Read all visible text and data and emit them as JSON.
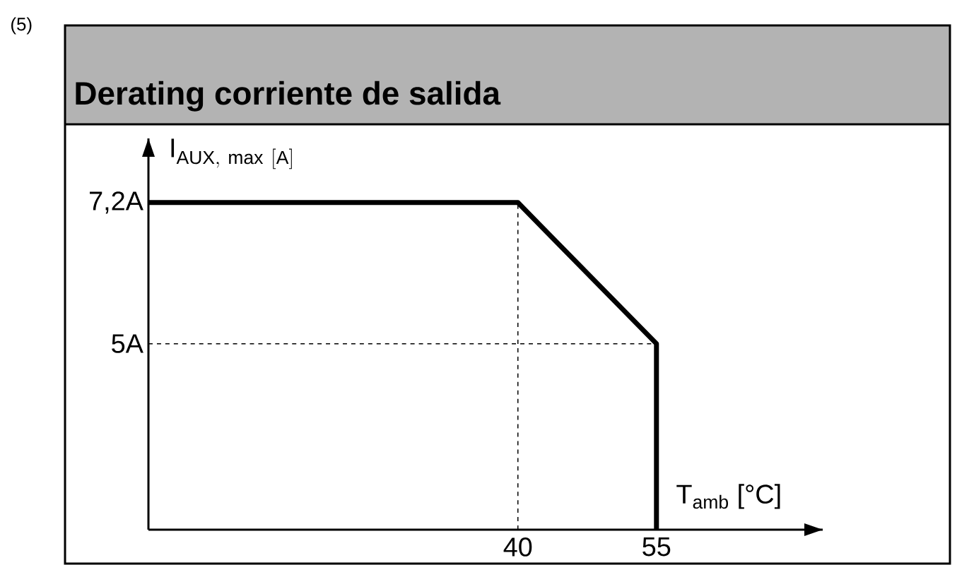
{
  "chart_data": {
    "type": "line",
    "title": "Derating corriente de salida",
    "annotations": [
      "(5)"
    ],
    "xlabel": "T$_{amb}$ [°C]",
    "ylabel": "\\mathrm{I}_{\\mathrm{AUX,\\ max\\ [A]}}",
    "x": [
      0,
      40,
      55,
      55
    ],
    "series": [
      {
        "color": "#000000",
        "values": [
          7.2,
          7.2,
          5,
          2.1
        ]
      }
    ],
    "xlim": [
      0,
      73
    ],
    "ylim": [
      2.1,
      8.2
    ],
    "xticks": [
      40,
      55
    ],
    "yticks": [
      {
        "value": 5,
        "label": "5A"
      },
      {
        "value": 7.2,
        "label": "7,2A"
      }
    ],
    "ref_lines": [
      {
        "axis": "x",
        "value": 40,
        "line_style": "dashed"
      },
      {
        "axis": "y",
        "value": 5,
        "line_style": "dashed"
      }
    ],
    "grid": false,
    "marker": "none",
    "line_style": "solid"
  }
}
